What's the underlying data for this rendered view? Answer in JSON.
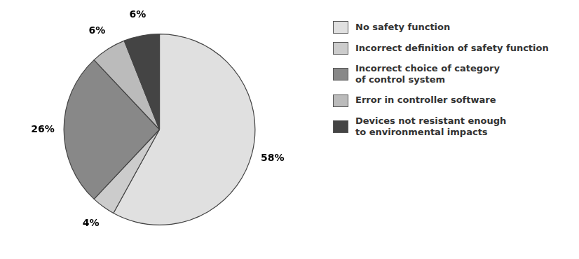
{
  "chart_data": {
    "type": "pie",
    "categories": [
      "No safety function",
      "Incorrect definition of safety function",
      "Incorrect choice of category\nof control system",
      "Error in controller software",
      "Devices not resistant enough\nto environmental impacts"
    ],
    "values": [
      58,
      4,
      26,
      6,
      6
    ],
    "value_labels": [
      "58%",
      "4%",
      "26%",
      "6%",
      "6%"
    ],
    "colors": [
      "#e0e0e0",
      "#cccccc",
      "#888888",
      "#bbbbbb",
      "#444444"
    ],
    "data_labels": true,
    "legend": "right"
  }
}
